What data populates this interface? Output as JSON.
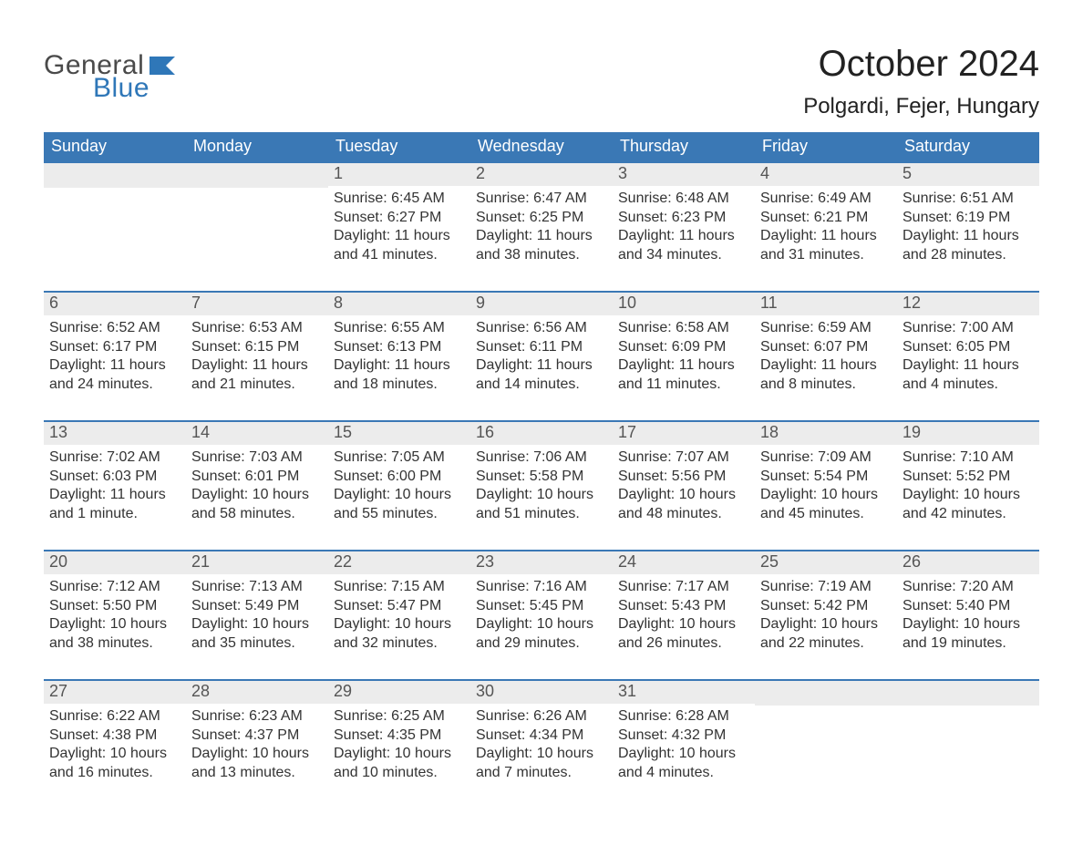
{
  "brand": {
    "top": "General",
    "bottom": "Blue",
    "top_color": "#4a4a4a",
    "bottom_color": "#2f77b8"
  },
  "header": {
    "month": "October 2024",
    "location": "Polgardi, Fejer, Hungary"
  },
  "colors": {
    "header_bg": "#3a78b5",
    "header_fg": "#ffffff",
    "daynum_bg": "#ececec",
    "daynum_fg": "#555555",
    "cell_border": "#3a78b5",
    "text": "#333333",
    "background": "#ffffff"
  },
  "days_of_week": [
    "Sunday",
    "Monday",
    "Tuesday",
    "Wednesday",
    "Thursday",
    "Friday",
    "Saturday"
  ],
  "weeks": [
    [
      null,
      null,
      {
        "n": "1",
        "sunrise": "6:45 AM",
        "sunset": "6:27 PM",
        "daylight": "11 hours and 41 minutes."
      },
      {
        "n": "2",
        "sunrise": "6:47 AM",
        "sunset": "6:25 PM",
        "daylight": "11 hours and 38 minutes."
      },
      {
        "n": "3",
        "sunrise": "6:48 AM",
        "sunset": "6:23 PM",
        "daylight": "11 hours and 34 minutes."
      },
      {
        "n": "4",
        "sunrise": "6:49 AM",
        "sunset": "6:21 PM",
        "daylight": "11 hours and 31 minutes."
      },
      {
        "n": "5",
        "sunrise": "6:51 AM",
        "sunset": "6:19 PM",
        "daylight": "11 hours and 28 minutes."
      }
    ],
    [
      {
        "n": "6",
        "sunrise": "6:52 AM",
        "sunset": "6:17 PM",
        "daylight": "11 hours and 24 minutes."
      },
      {
        "n": "7",
        "sunrise": "6:53 AM",
        "sunset": "6:15 PM",
        "daylight": "11 hours and 21 minutes."
      },
      {
        "n": "8",
        "sunrise": "6:55 AM",
        "sunset": "6:13 PM",
        "daylight": "11 hours and 18 minutes."
      },
      {
        "n": "9",
        "sunrise": "6:56 AM",
        "sunset": "6:11 PM",
        "daylight": "11 hours and 14 minutes."
      },
      {
        "n": "10",
        "sunrise": "6:58 AM",
        "sunset": "6:09 PM",
        "daylight": "11 hours and 11 minutes."
      },
      {
        "n": "11",
        "sunrise": "6:59 AM",
        "sunset": "6:07 PM",
        "daylight": "11 hours and 8 minutes."
      },
      {
        "n": "12",
        "sunrise": "7:00 AM",
        "sunset": "6:05 PM",
        "daylight": "11 hours and 4 minutes."
      }
    ],
    [
      {
        "n": "13",
        "sunrise": "7:02 AM",
        "sunset": "6:03 PM",
        "daylight": "11 hours and 1 minute."
      },
      {
        "n": "14",
        "sunrise": "7:03 AM",
        "sunset": "6:01 PM",
        "daylight": "10 hours and 58 minutes."
      },
      {
        "n": "15",
        "sunrise": "7:05 AM",
        "sunset": "6:00 PM",
        "daylight": "10 hours and 55 minutes."
      },
      {
        "n": "16",
        "sunrise": "7:06 AM",
        "sunset": "5:58 PM",
        "daylight": "10 hours and 51 minutes."
      },
      {
        "n": "17",
        "sunrise": "7:07 AM",
        "sunset": "5:56 PM",
        "daylight": "10 hours and 48 minutes."
      },
      {
        "n": "18",
        "sunrise": "7:09 AM",
        "sunset": "5:54 PM",
        "daylight": "10 hours and 45 minutes."
      },
      {
        "n": "19",
        "sunrise": "7:10 AM",
        "sunset": "5:52 PM",
        "daylight": "10 hours and 42 minutes."
      }
    ],
    [
      {
        "n": "20",
        "sunrise": "7:12 AM",
        "sunset": "5:50 PM",
        "daylight": "10 hours and 38 minutes."
      },
      {
        "n": "21",
        "sunrise": "7:13 AM",
        "sunset": "5:49 PM",
        "daylight": "10 hours and 35 minutes."
      },
      {
        "n": "22",
        "sunrise": "7:15 AM",
        "sunset": "5:47 PM",
        "daylight": "10 hours and 32 minutes."
      },
      {
        "n": "23",
        "sunrise": "7:16 AM",
        "sunset": "5:45 PM",
        "daylight": "10 hours and 29 minutes."
      },
      {
        "n": "24",
        "sunrise": "7:17 AM",
        "sunset": "5:43 PM",
        "daylight": "10 hours and 26 minutes."
      },
      {
        "n": "25",
        "sunrise": "7:19 AM",
        "sunset": "5:42 PM",
        "daylight": "10 hours and 22 minutes."
      },
      {
        "n": "26",
        "sunrise": "7:20 AM",
        "sunset": "5:40 PM",
        "daylight": "10 hours and 19 minutes."
      }
    ],
    [
      {
        "n": "27",
        "sunrise": "6:22 AM",
        "sunset": "4:38 PM",
        "daylight": "10 hours and 16 minutes."
      },
      {
        "n": "28",
        "sunrise": "6:23 AM",
        "sunset": "4:37 PM",
        "daylight": "10 hours and 13 minutes."
      },
      {
        "n": "29",
        "sunrise": "6:25 AM",
        "sunset": "4:35 PM",
        "daylight": "10 hours and 10 minutes."
      },
      {
        "n": "30",
        "sunrise": "6:26 AM",
        "sunset": "4:34 PM",
        "daylight": "10 hours and 7 minutes."
      },
      {
        "n": "31",
        "sunrise": "6:28 AM",
        "sunset": "4:32 PM",
        "daylight": "10 hours and 4 minutes."
      },
      null,
      null
    ]
  ],
  "labels": {
    "sunrise": "Sunrise:",
    "sunset": "Sunset:",
    "daylight": "Daylight:"
  }
}
